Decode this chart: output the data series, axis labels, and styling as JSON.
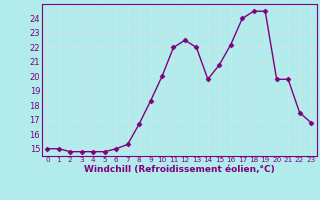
{
  "x": [
    0,
    1,
    2,
    3,
    4,
    5,
    6,
    7,
    8,
    9,
    10,
    11,
    12,
    13,
    14,
    15,
    16,
    17,
    18,
    19,
    20,
    21,
    22,
    23
  ],
  "y": [
    15.0,
    15.0,
    14.8,
    14.8,
    14.8,
    14.8,
    15.0,
    15.3,
    16.7,
    18.3,
    20.0,
    22.0,
    22.5,
    22.0,
    19.8,
    20.8,
    22.2,
    24.0,
    24.5,
    24.5,
    19.8,
    19.8,
    17.5,
    16.8
  ],
  "line_color": "#800080",
  "marker": "D",
  "markersize": 2.5,
  "bg_color": "#b2ebeb",
  "grid_color": "#c8e8e8",
  "xlabel": "Windchill (Refroidissement éolien,°C)",
  "xlabel_color": "#800080",
  "tick_color": "#800080",
  "spine_color": "#800080",
  "ylim": [
    14.5,
    25.0
  ],
  "xlim": [
    -0.5,
    23.5
  ],
  "yticks": [
    15,
    16,
    17,
    18,
    19,
    20,
    21,
    22,
    23,
    24
  ],
  "xticks": [
    0,
    1,
    2,
    3,
    4,
    5,
    6,
    7,
    8,
    9,
    10,
    11,
    12,
    13,
    14,
    15,
    16,
    17,
    18,
    19,
    20,
    21,
    22,
    23
  ],
  "tick_fontsize": 6.0,
  "xlabel_fontsize": 6.5,
  "linewidth": 1.0
}
